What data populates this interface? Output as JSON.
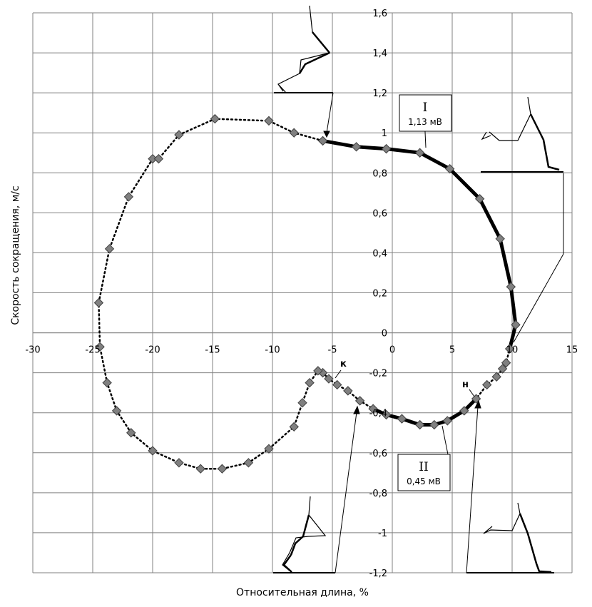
{
  "chart_data": {
    "type": "scatter",
    "title": "",
    "xlabel": "Относительная длина, %",
    "ylabel": "Скорость сокращения, м/с",
    "xlim": [
      -30,
      15
    ],
    "ylim": [
      -1.2,
      1.6
    ],
    "x_ticks": [
      -30,
      -25,
      -20,
      -15,
      -10,
      -5,
      0,
      5,
      10,
      15
    ],
    "y_ticks": [
      1.6,
      1.4,
      1.2,
      1,
      0.8,
      0.6,
      0.4,
      0.2,
      0,
      -0.2,
      -0.4,
      -0.6,
      -0.8,
      -1,
      -1.2
    ],
    "x_tick_labels": [
      "-30",
      "-25",
      "-20",
      "-15",
      "-10",
      "-5",
      "0",
      "5",
      "10",
      "15"
    ],
    "y_tick_labels": [
      "1,6",
      "1,4",
      "1,2",
      "1",
      "0,8",
      "0,6",
      "0,4",
      "0,2",
      "0",
      "-0,2",
      "-0,4",
      "-0,6",
      "-0,8",
      "-1",
      "-1,2"
    ],
    "grid": true,
    "legend": "none",
    "marker": "diamond",
    "marker_color": "#808080",
    "loop_points": [
      {
        "x": -5.8,
        "y": 0.96
      },
      {
        "x": -3.0,
        "y": 0.93
      },
      {
        "x": -0.5,
        "y": 0.92
      },
      {
        "x": 2.3,
        "y": 0.9
      },
      {
        "x": 4.8,
        "y": 0.82
      },
      {
        "x": 7.3,
        "y": 0.67
      },
      {
        "x": 9.0,
        "y": 0.47
      },
      {
        "x": 9.9,
        "y": 0.23
      },
      {
        "x": 10.3,
        "y": 0.04
      },
      {
        "x": 9.8,
        "y": -0.08
      },
      {
        "x": 9.5,
        "y": -0.15
      },
      {
        "x": 9.2,
        "y": -0.18
      },
      {
        "x": 8.7,
        "y": -0.22
      },
      {
        "x": 7.9,
        "y": -0.26
      },
      {
        "x": 7.0,
        "y": -0.33
      },
      {
        "x": 6.0,
        "y": -0.39
      },
      {
        "x": 4.6,
        "y": -0.44
      },
      {
        "x": 3.5,
        "y": -0.46
      },
      {
        "x": 2.3,
        "y": -0.46
      },
      {
        "x": 0.8,
        "y": -0.43
      },
      {
        "x": -0.5,
        "y": -0.41
      },
      {
        "x": -1.6,
        "y": -0.38
      },
      {
        "x": -2.7,
        "y": -0.34
      },
      {
        "x": -3.7,
        "y": -0.29
      },
      {
        "x": -4.6,
        "y": -0.26
      },
      {
        "x": -5.3,
        "y": -0.23
      },
      {
        "x": -5.8,
        "y": -0.2
      },
      {
        "x": -6.2,
        "y": -0.19
      },
      {
        "x": -6.9,
        "y": -0.25
      },
      {
        "x": -7.5,
        "y": -0.35
      },
      {
        "x": -8.2,
        "y": -0.47
      },
      {
        "x": -10.3,
        "y": -0.58
      },
      {
        "x": -12.0,
        "y": -0.65
      },
      {
        "x": -14.2,
        "y": -0.68
      },
      {
        "x": -16.0,
        "y": -0.68
      },
      {
        "x": -17.8,
        "y": -0.65
      },
      {
        "x": -20.0,
        "y": -0.59
      },
      {
        "x": -21.8,
        "y": -0.5
      },
      {
        "x": -23.0,
        "y": -0.39
      },
      {
        "x": -23.8,
        "y": -0.25
      },
      {
        "x": -24.4,
        "y": -0.07
      },
      {
        "x": -24.5,
        "y": 0.15
      },
      {
        "x": -23.6,
        "y": 0.42
      },
      {
        "x": -22.0,
        "y": 0.68
      },
      {
        "x": -20.0,
        "y": 0.87
      },
      {
        "x": -19.5,
        "y": 0.87
      },
      {
        "x": -17.8,
        "y": 0.99
      },
      {
        "x": -14.8,
        "y": 1.07
      },
      {
        "x": -10.3,
        "y": 1.06
      },
      {
        "x": -8.2,
        "y": 1.0
      },
      {
        "x": -5.8,
        "y": 0.96
      }
    ],
    "active_segments": [
      [
        0,
        9
      ],
      [
        14,
        21
      ]
    ],
    "segment_labels": [
      {
        "roman": "I",
        "value": "1,13 мВ"
      },
      {
        "roman": "II",
        "value": "0,45 мВ"
      }
    ],
    "point_letters": [
      "к",
      "н"
    ]
  }
}
